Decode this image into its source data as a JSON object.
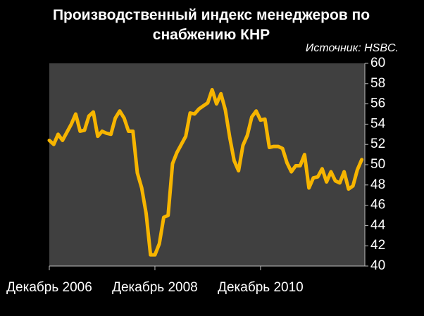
{
  "chart_data": {
    "type": "line",
    "title": "Производственный индекс менеджеров по снабжению КНР",
    "source": "Источник: HSBC.",
    "categories": [
      "Декабрь 2006",
      null,
      null,
      null,
      null,
      null,
      null,
      null,
      null,
      null,
      null,
      null,
      null,
      null,
      null,
      null,
      null,
      null,
      null,
      null,
      null,
      null,
      null,
      null,
      "Декабрь 2008",
      null,
      null,
      null,
      null,
      null,
      null,
      null,
      null,
      null,
      null,
      null,
      null,
      null,
      null,
      null,
      null,
      null,
      null,
      null,
      null,
      null,
      null,
      null,
      "Декабрь 2010",
      null,
      null,
      null,
      null,
      null,
      null,
      null,
      null,
      null,
      null,
      null,
      null,
      null,
      null,
      null,
      null,
      null,
      null,
      null,
      null,
      null,
      null,
      null
    ],
    "series": [
      {
        "color": "#f7b500",
        "values": [
          52.4,
          52.0,
          53.0,
          52.4,
          53.2,
          54.0,
          55.0,
          53.3,
          53.4,
          54.8,
          55.2,
          52.8,
          53.3,
          53.1,
          53.0,
          54.6,
          55.3,
          54.6,
          53.3,
          53.3,
          49.2,
          47.7,
          45.2,
          41.1,
          41.1,
          42.2,
          44.8,
          45.0,
          50.1,
          51.2,
          52.0,
          52.8,
          55.1,
          55.0,
          55.5,
          55.8,
          56.1,
          57.4,
          56.0,
          57.0,
          55.4,
          52.7,
          50.4,
          49.4,
          51.9,
          52.9,
          54.7,
          55.3,
          54.4,
          54.5,
          51.7,
          51.8,
          51.8,
          51.6,
          50.2,
          49.3,
          49.9,
          49.9,
          51.0,
          47.7,
          48.7,
          48.8,
          49.6,
          48.3,
          49.3,
          48.4,
          48.2,
          49.3,
          47.6,
          47.9,
          49.5,
          50.5
        ]
      }
    ],
    "ylim": [
      40,
      60
    ],
    "yticks": [
      40,
      42,
      44,
      46,
      48,
      50,
      52,
      54,
      56,
      58,
      60
    ],
    "grid": false
  }
}
